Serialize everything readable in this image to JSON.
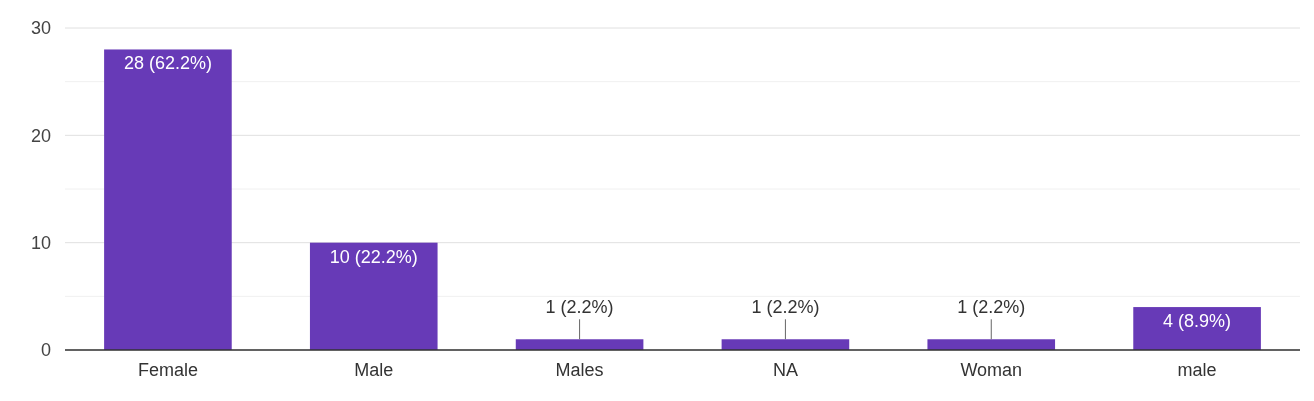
{
  "chart_data": {
    "type": "bar",
    "categories": [
      "Female",
      "Male",
      "Males",
      "NA",
      "Woman",
      "male"
    ],
    "values": [
      28,
      10,
      1,
      1,
      1,
      4
    ],
    "value_labels": [
      "28 (62.2%)",
      "10 (22.2%)",
      "1 (2.2%)",
      "1 (2.2%)",
      "1 (2.2%)",
      "4 (8.9%)"
    ],
    "color": "#673ab7",
    "ylim": [
      0,
      30
    ],
    "yticks": [
      0,
      {
        "value": 5,
        "label": null
      },
      10,
      {
        "value": 15,
        "label": null
      },
      20,
      {
        "value": 25,
        "label": null
      },
      30
    ],
    "grid": "y"
  }
}
